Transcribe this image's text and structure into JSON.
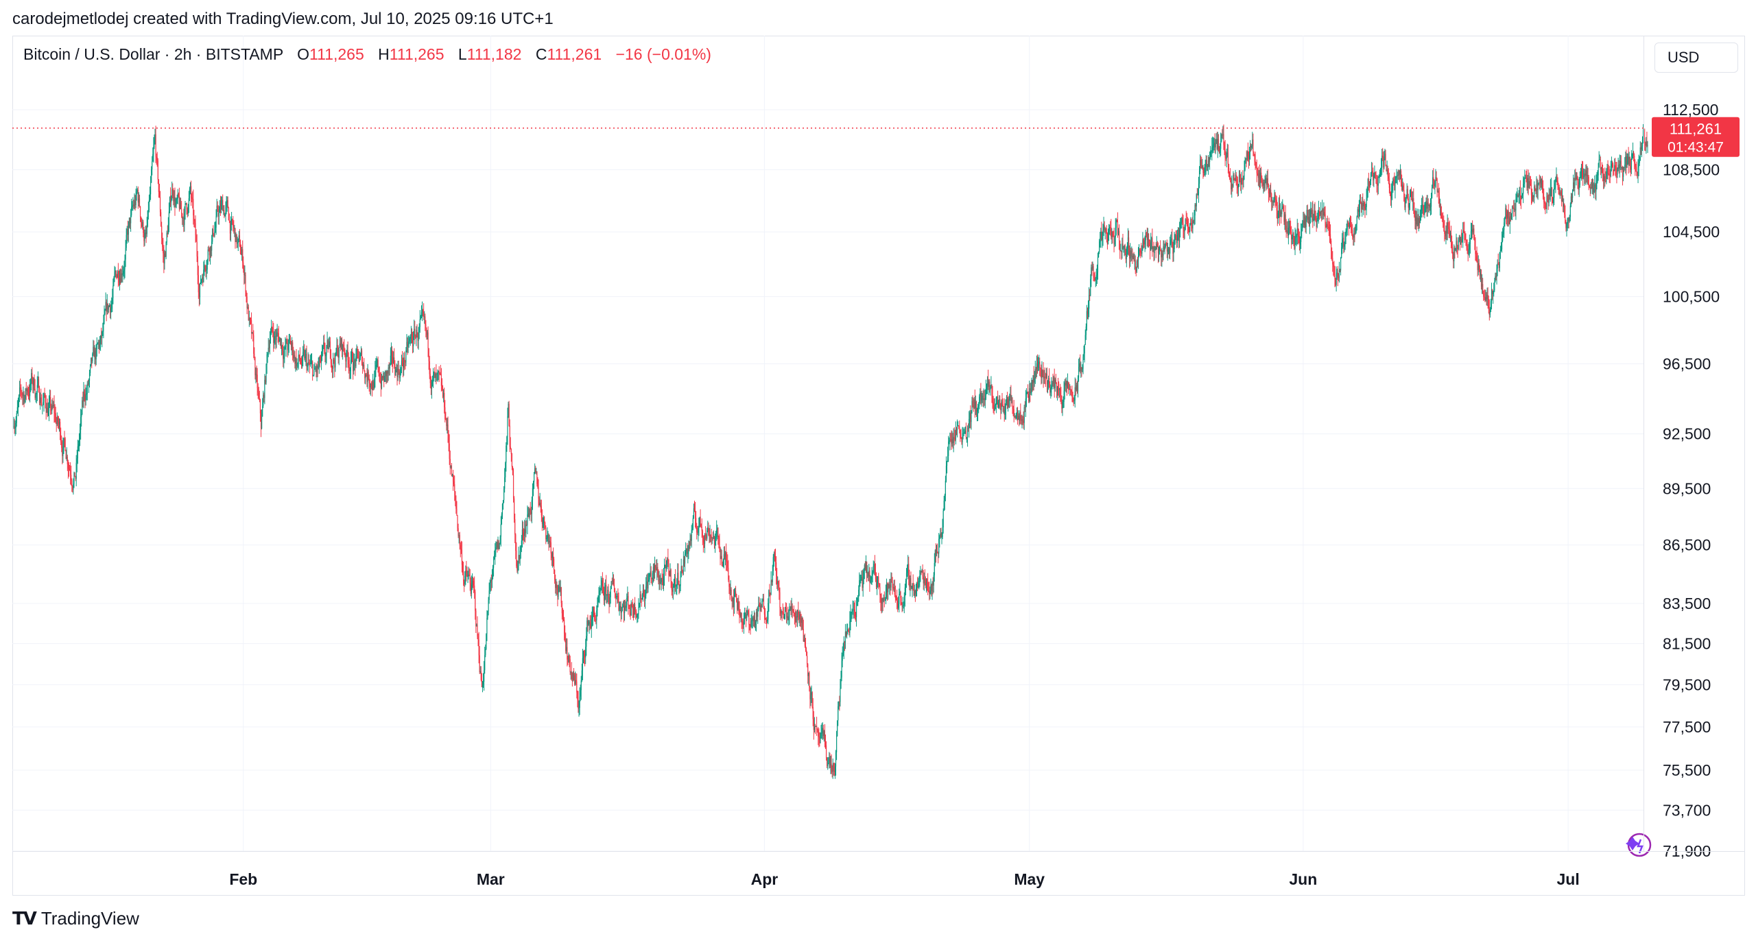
{
  "attribution": "carodejmetlodej created with TradingView.com, Jul 10, 2025 09:16 UTC+1",
  "legend": {
    "symbol": "Bitcoin / U.S. Dollar · 2h · BITSTAMP",
    "open_label": "O",
    "open": "111,265",
    "high_label": "H",
    "high": "111,265",
    "low_label": "L",
    "low": "111,182",
    "close_label": "C",
    "close": "111,261",
    "change": "−16 (−0.01%)"
  },
  "currency_button": "USD",
  "price_badge": {
    "price": "111,261",
    "countdown": "01:43:47"
  },
  "footer": {
    "brand": "TradingView"
  },
  "colors": {
    "up": "#089981",
    "down": "#f23645",
    "grid": "#f0f3fa",
    "text": "#131722"
  },
  "icons": {
    "logo": "tradingview-logo-icon",
    "assistant": "sparkle-assistant-icon"
  },
  "chart_data": {
    "type": "candlestick",
    "interval": "2h",
    "y_scale": "log",
    "ylim": [
      71900,
      112500
    ],
    "current_price": 111261,
    "x_range": [
      "2025-01-06",
      "2025-07-10"
    ],
    "y_ticks": [
      {
        "value": 112500,
        "label": "112,500"
      },
      {
        "value": 108500,
        "label": "108,500"
      },
      {
        "value": 104500,
        "label": "104,500"
      },
      {
        "value": 100500,
        "label": "100,500"
      },
      {
        "value": 96500,
        "label": "96,500"
      },
      {
        "value": 92500,
        "label": "92,500"
      },
      {
        "value": 89500,
        "label": "89,500"
      },
      {
        "value": 86500,
        "label": "86,500"
      },
      {
        "value": 83500,
        "label": "83,500"
      },
      {
        "value": 81500,
        "label": "81,500"
      },
      {
        "value": 79500,
        "label": "79,500"
      },
      {
        "value": 77500,
        "label": "77,500"
      },
      {
        "value": 75500,
        "label": "75,500"
      },
      {
        "value": 73700,
        "label": "73,700"
      },
      {
        "value": 71900,
        "label": "71,900"
      }
    ],
    "x_ticks": [
      {
        "date": "2025-02-01",
        "label": "Feb"
      },
      {
        "date": "2025-03-01",
        "label": "Mar"
      },
      {
        "date": "2025-04-01",
        "label": "Apr"
      },
      {
        "date": "2025-05-01",
        "label": "May"
      },
      {
        "date": "2025-06-01",
        "label": "Jun"
      },
      {
        "date": "2025-07-01",
        "label": "Jul"
      }
    ],
    "price_path": [
      [
        "2025-01-06",
        93500
      ],
      [
        "2025-01-08",
        95500
      ],
      [
        "2025-01-10",
        94000
      ],
      [
        "2025-01-13",
        90500
      ],
      [
        "2025-01-14",
        94500
      ],
      [
        "2025-01-16",
        97500
      ],
      [
        "2025-01-18",
        102500
      ],
      [
        "2025-01-20",
        106500
      ],
      [
        "2025-01-21",
        104000
      ],
      [
        "2025-01-22",
        109500
      ],
      [
        "2025-01-23",
        102500
      ],
      [
        "2025-01-24",
        107500
      ],
      [
        "2025-01-25",
        105000
      ],
      [
        "2025-01-26",
        107000
      ],
      [
        "2025-01-27",
        101000
      ],
      [
        "2025-01-28",
        104000
      ],
      [
        "2025-01-29",
        105500
      ],
      [
        "2025-01-30",
        106000
      ],
      [
        "2025-01-31",
        104000
      ],
      [
        "2025-02-01",
        102500
      ],
      [
        "2025-02-03",
        92500
      ],
      [
        "2025-02-04",
        98500
      ],
      [
        "2025-02-06",
        97500
      ],
      [
        "2025-02-09",
        95500
      ],
      [
        "2025-02-12",
        97500
      ],
      [
        "2025-02-14",
        96500
      ],
      [
        "2025-02-17",
        95500
      ],
      [
        "2025-02-19",
        96500
      ],
      [
        "2025-02-21",
        98500
      ],
      [
        "2025-02-22",
        96500
      ],
      [
        "2025-02-24",
        93000
      ],
      [
        "2025-02-25",
        88500
      ],
      [
        "2025-02-26",
        85000
      ],
      [
        "2025-02-27",
        84000
      ],
      [
        "2025-02-28",
        79500
      ],
      [
        "2025-03-01",
        84500
      ],
      [
        "2025-03-02",
        86000
      ],
      [
        "2025-03-03",
        93500
      ],
      [
        "2025-03-04",
        85500
      ],
      [
        "2025-03-05",
        88000
      ],
      [
        "2025-03-06",
        89500
      ],
      [
        "2025-03-08",
        86500
      ],
      [
        "2025-03-10",
        80500
      ],
      [
        "2025-03-11",
        78500
      ],
      [
        "2025-03-12",
        82500
      ],
      [
        "2025-03-15",
        84000
      ],
      [
        "2025-03-17",
        83500
      ],
      [
        "2025-03-19",
        85000
      ],
      [
        "2025-03-22",
        84500
      ],
      [
        "2025-03-24",
        87500
      ],
      [
        "2025-03-26",
        87500
      ],
      [
        "2025-03-28",
        85000
      ],
      [
        "2025-03-30",
        82500
      ],
      [
        "2025-04-01",
        83000
      ],
      [
        "2025-04-02",
        86000
      ],
      [
        "2025-04-03",
        82500
      ],
      [
        "2025-04-05",
        83500
      ],
      [
        "2025-04-06",
        80500
      ],
      [
        "2025-04-07",
        76500
      ],
      [
        "2025-04-09",
        75500
      ],
      [
        "2025-04-10",
        81500
      ],
      [
        "2025-04-12",
        84500
      ],
      [
        "2025-04-14",
        84500
      ],
      [
        "2025-04-16",
        84000
      ],
      [
        "2025-04-18",
        84500
      ],
      [
        "2025-04-20",
        85000
      ],
      [
        "2025-04-21",
        87500
      ],
      [
        "2025-04-22",
        92500
      ],
      [
        "2025-04-24",
        93500
      ],
      [
        "2025-04-26",
        94500
      ],
      [
        "2025-04-28",
        94000
      ],
      [
        "2025-04-30",
        94500
      ],
      [
        "2025-05-02",
        96500
      ],
      [
        "2025-05-04",
        95000
      ],
      [
        "2025-05-06",
        94500
      ],
      [
        "2025-05-07",
        96500
      ],
      [
        "2025-05-08",
        101500
      ],
      [
        "2025-05-09",
        103500
      ],
      [
        "2025-05-11",
        104000
      ],
      [
        "2025-05-13",
        103000
      ],
      [
        "2025-05-15",
        103500
      ],
      [
        "2025-05-17",
        103500
      ],
      [
        "2025-05-19",
        105500
      ],
      [
        "2025-05-21",
        109500
      ],
      [
        "2025-05-22",
        111000
      ],
      [
        "2025-05-24",
        108000
      ],
      [
        "2025-05-26",
        109500
      ],
      [
        "2025-05-28",
        107500
      ],
      [
        "2025-05-30",
        105000
      ],
      [
        "2025-06-01",
        104500
      ],
      [
        "2025-06-03",
        105500
      ],
      [
        "2025-06-05",
        102000
      ],
      [
        "2025-06-07",
        105500
      ],
      [
        "2025-06-09",
        108500
      ],
      [
        "2025-06-10",
        109500
      ],
      [
        "2025-06-12",
        107000
      ],
      [
        "2025-06-14",
        105500
      ],
      [
        "2025-06-16",
        107500
      ],
      [
        "2025-06-18",
        104500
      ],
      [
        "2025-06-20",
        104000
      ],
      [
        "2025-06-22",
        100000
      ],
      [
        "2025-06-23",
        102500
      ],
      [
        "2025-06-24",
        105500
      ],
      [
        "2025-06-26",
        107500
      ],
      [
        "2025-06-28",
        107500
      ],
      [
        "2025-06-30",
        107000
      ],
      [
        "2025-07-01",
        105500
      ],
      [
        "2025-07-02",
        108500
      ],
      [
        "2025-07-04",
        108000
      ],
      [
        "2025-07-06",
        108500
      ],
      [
        "2025-07-08",
        108500
      ],
      [
        "2025-07-09",
        109500
      ],
      [
        "2025-07-10",
        111261
      ]
    ]
  }
}
